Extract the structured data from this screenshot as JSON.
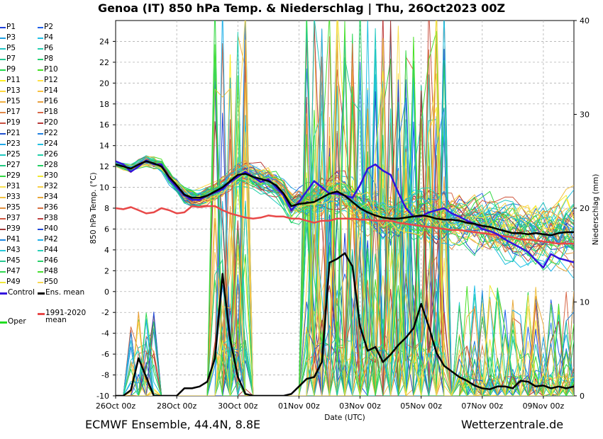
{
  "title": "Genoa  (IT)  850 hPa Temp. & Niederschlag | Thu, 26Oct2023 00Z",
  "footer": {
    "left": "ECMWF Ensemble, 44.4N, 8.8E",
    "right": "Wetterzentrale.de"
  },
  "chart_data": {
    "type": "line",
    "ylabel": "850 hPa Temp. (°C)",
    "y2label": "Niederschlag (mm)",
    "xlabel": "Date (UTC)",
    "ylim": [
      -10,
      25
    ],
    "y2lim": [
      0,
      40
    ],
    "yticks": [
      "24",
      "22",
      "20",
      "18",
      "16",
      "14",
      "12",
      "10",
      "8",
      "6",
      "4",
      "2",
      "0",
      "-2",
      "-4",
      "-6",
      "-8",
      "-10"
    ],
    "y2ticks": [
      "40",
      "30",
      "20",
      "10",
      "0"
    ],
    "xticks": [
      "26Oct 00z",
      "28Oct 00z",
      "30Oct 00z",
      "01Nov 00z",
      "03Nov 00z",
      "05Nov 00z",
      "07Nov 00z",
      "09Nov 00z"
    ],
    "grid": true,
    "legend_placement": "left",
    "x_hours": [
      0,
      6,
      12,
      18,
      24,
      30,
      36,
      42,
      48,
      54,
      60,
      66,
      72,
      78,
      84,
      90,
      96,
      102,
      108,
      114,
      120,
      126,
      132,
      138,
      144,
      150,
      156,
      162,
      168,
      174,
      180,
      186,
      192,
      198,
      204,
      210,
      216,
      222,
      228,
      234,
      240,
      246,
      252,
      258,
      264,
      270,
      276,
      282,
      288,
      294,
      300,
      306,
      312,
      318,
      324,
      330,
      336,
      342,
      348,
      354,
      360
    ],
    "series": [
      {
        "name": "Ens. mean",
        "color": "#000000",
        "axis": "temp",
        "values": [
          12.2,
          12.0,
          11.8,
          12.2,
          12.5,
          12.3,
          12.0,
          11.0,
          10.2,
          9.3,
          9.0,
          9.0,
          9.2,
          9.6,
          10.0,
          10.6,
          11.2,
          11.3,
          11.0,
          10.8,
          10.6,
          10.2,
          9.4,
          8.2,
          8.4,
          8.5,
          8.6,
          9.0,
          9.4,
          9.6,
          9.2,
          8.6,
          8.0,
          7.6,
          7.3,
          7.1,
          7.0,
          7.0,
          7.1,
          7.2,
          7.3,
          7.2,
          7.0,
          6.9,
          6.9,
          6.8,
          6.6,
          6.5,
          6.3,
          6.2,
          6.0,
          5.8,
          5.6,
          5.6,
          5.5,
          5.6,
          5.5,
          5.4,
          5.6,
          5.7,
          5.7
        ]
      },
      {
        "name": "Control",
        "color": "#3311dd",
        "axis": "temp",
        "values": [
          12.5,
          12.2,
          11.5,
          12.0,
          12.6,
          12.2,
          12.2,
          10.8,
          10.0,
          9.2,
          8.8,
          8.8,
          9.2,
          9.5,
          9.8,
          10.5,
          11.0,
          11.5,
          11.0,
          10.5,
          10.8,
          10.0,
          9.2,
          7.8,
          8.6,
          9.6,
          10.6,
          10.0,
          9.4,
          9.4,
          9.2,
          9.0,
          10.2,
          11.8,
          12.2,
          11.6,
          11.2,
          9.5,
          8.0,
          7.2,
          7.2,
          7.6,
          7.8,
          8.0,
          7.5,
          7.2,
          6.8,
          6.5,
          6.0,
          5.8,
          5.5,
          5.0,
          4.6,
          4.2,
          3.8,
          3.0,
          2.3,
          3.6,
          3.2,
          3.0,
          2.8
        ]
      },
      {
        "name": "1991-2020 mean",
        "color": "#e84848",
        "axis": "temp",
        "values": [
          8.0,
          7.9,
          8.1,
          7.8,
          7.5,
          7.6,
          8.0,
          7.8,
          7.5,
          7.6,
          8.2,
          8.1,
          8.2,
          8.2,
          7.8,
          7.5,
          7.3,
          7.1,
          7.0,
          7.1,
          7.3,
          7.2,
          7.2,
          7.0,
          7.0,
          6.8,
          6.6,
          6.8,
          6.8,
          7.0,
          7.0,
          7.0,
          6.9,
          6.9,
          6.8,
          6.8,
          6.8,
          6.6,
          6.5,
          6.4,
          6.3,
          6.2,
          6.1,
          6.0,
          5.9,
          5.9,
          5.8,
          5.7,
          5.6,
          5.5,
          5.4,
          5.3,
          5.2,
          5.0,
          5.0,
          4.9,
          4.8,
          4.7,
          4.6,
          4.6,
          4.6
        ]
      },
      {
        "name": "Ens. mean precip",
        "color": "#000000",
        "axis": "precip",
        "values": [
          0,
          0,
          0.6,
          4,
          2,
          0,
          0,
          0,
          0,
          0.8,
          0.8,
          1,
          1.5,
          4,
          13,
          6,
          2,
          0.2,
          0,
          0,
          0,
          0,
          0,
          0.2,
          1,
          1.8,
          2,
          3.6,
          14.2,
          14.6,
          15.2,
          13.8,
          7.4,
          4.8,
          5.2,
          3.6,
          4.4,
          5.4,
          6.2,
          7.2,
          9.8,
          7.4,
          4.6,
          3.2,
          2.6,
          2,
          1.6,
          1.1,
          0.8,
          0.7,
          1,
          1,
          0.8,
          1.6,
          1.5,
          1,
          1.1,
          0.8,
          1,
          0.8,
          1
        ]
      },
      {
        "name": "Control precip",
        "color": "#3311dd",
        "axis": "precip",
        "values": [
          0,
          0,
          0,
          0,
          0,
          0,
          0,
          0,
          0,
          0,
          0,
          0,
          0,
          0,
          3,
          0,
          0,
          0,
          0,
          0,
          0,
          0,
          0,
          0,
          0,
          0,
          0,
          0,
          0,
          0,
          0,
          0,
          0,
          0,
          0,
          0,
          0,
          0,
          0,
          0,
          0,
          0,
          0,
          0,
          0,
          0,
          0,
          0,
          0,
          0,
          0,
          0,
          0,
          0,
          0,
          0,
          0,
          0,
          0,
          0,
          0
        ]
      }
    ],
    "legend": [
      {
        "name": "P1",
        "color": "#1f3fd8"
      },
      {
        "name": "P2",
        "color": "#1f5fe8"
      },
      {
        "name": "P3",
        "color": "#1f9fe0"
      },
      {
        "name": "P4",
        "color": "#1fbfe8"
      },
      {
        "name": "P5",
        "color": "#22c4c4"
      },
      {
        "name": "P6",
        "color": "#22d0b0"
      },
      {
        "name": "P7",
        "color": "#22c890"
      },
      {
        "name": "P8",
        "color": "#22d070"
      },
      {
        "name": "P9",
        "color": "#22d84c"
      },
      {
        "name": "P10",
        "color": "#44e022"
      },
      {
        "name": "P11",
        "color": "#ffee22"
      },
      {
        "name": "P12",
        "color": "#ffe044"
      },
      {
        "name": "P13",
        "color": "#ffd840"
      },
      {
        "name": "P14",
        "color": "#f8c040"
      },
      {
        "name": "P15",
        "color": "#f0b040"
      },
      {
        "name": "P16",
        "color": "#e8a040"
      },
      {
        "name": "P17",
        "color": "#e08848"
      },
      {
        "name": "P18",
        "color": "#d86848"
      },
      {
        "name": "P19",
        "color": "#c85040"
      },
      {
        "name": "P20",
        "color": "#b83838"
      },
      {
        "name": "P21",
        "color": "#2050d0"
      },
      {
        "name": "P22",
        "color": "#2080e0"
      },
      {
        "name": "P23",
        "color": "#20a8e8"
      },
      {
        "name": "P24",
        "color": "#20c0e0"
      },
      {
        "name": "P25",
        "color": "#20c8c0"
      },
      {
        "name": "P26",
        "color": "#20d0a8"
      },
      {
        "name": "P27",
        "color": "#20c880"
      },
      {
        "name": "P28",
        "color": "#20d060"
      },
      {
        "name": "P29",
        "color": "#30d840"
      },
      {
        "name": "P30",
        "color": "#f0e830"
      },
      {
        "name": "P31",
        "color": "#f8e050"
      },
      {
        "name": "P32",
        "color": "#f8d048"
      },
      {
        "name": "P33",
        "color": "#f0c040"
      },
      {
        "name": "P34",
        "color": "#e8a838"
      },
      {
        "name": "P35",
        "color": "#e09040"
      },
      {
        "name": "P36",
        "color": "#d87040"
      },
      {
        "name": "P37",
        "color": "#d05840"
      },
      {
        "name": "P38",
        "color": "#c04040"
      },
      {
        "name": "P39",
        "color": "#a03838"
      },
      {
        "name": "P40",
        "color": "#2048d8"
      },
      {
        "name": "P41",
        "color": "#2088e0"
      },
      {
        "name": "P42",
        "color": "#20b0e8"
      },
      {
        "name": "P43",
        "color": "#28c8d8"
      },
      {
        "name": "P44",
        "color": "#28d0b8"
      },
      {
        "name": "P45",
        "color": "#28c890"
      },
      {
        "name": "P46",
        "color": "#28d068"
      },
      {
        "name": "P47",
        "color": "#30d850"
      },
      {
        "name": "P48",
        "color": "#48e030"
      },
      {
        "name": "P49",
        "color": "#f0e838"
      },
      {
        "name": "P50",
        "color": "#f8d850"
      },
      {
        "name": "Control",
        "color": "#3311dd"
      },
      {
        "name": "Ens. mean",
        "color": "#000000"
      },
      {
        "name": "1991-2020\nmean",
        "color": "#e84848"
      },
      {
        "name": "Oper",
        "color": "#22dd22"
      }
    ]
  }
}
